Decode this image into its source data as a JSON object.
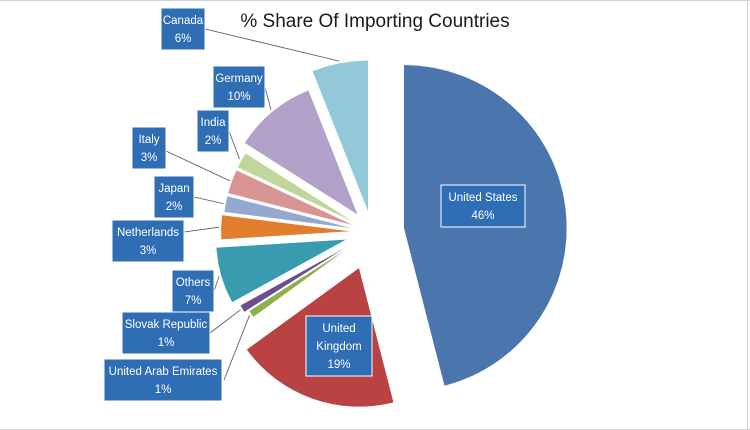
{
  "chart_data": {
    "type": "pie",
    "title": "% Share Of Importing Countries",
    "slices": [
      {
        "label": "United States",
        "value": 46,
        "value_label": "46%",
        "color": "#4a76ad",
        "label_inside": true
      },
      {
        "label": "United Kingdom",
        "value": 19,
        "value_label": "19%",
        "color": "#b94342",
        "label_inside": true
      },
      {
        "label": "United Arab Emirates",
        "value": 1,
        "value_label": "1%",
        "color": "#8cb04a",
        "label_inside": false
      },
      {
        "label": "Slovak Republic",
        "value": 1,
        "value_label": "1%",
        "color": "#6d4f8e",
        "label_inside": false
      },
      {
        "label": "Others",
        "value": 7,
        "value_label": "7%",
        "color": "#3a9bb0",
        "label_inside": false
      },
      {
        "label": "Netherlands",
        "value": 3,
        "value_label": "3%",
        "color": "#e07e2e",
        "label_inside": false
      },
      {
        "label": "Japan",
        "value": 2,
        "value_label": "2%",
        "color": "#93a9d0",
        "label_inside": false
      },
      {
        "label": "Italy",
        "value": 3,
        "value_label": "3%",
        "color": "#d99594",
        "label_inside": false
      },
      {
        "label": "India",
        "value": 2,
        "value_label": "2%",
        "color": "#c1d69b",
        "label_inside": false
      },
      {
        "label": "Germany",
        "value": 10,
        "value_label": "10%",
        "color": "#b1a0c7",
        "label_inside": false
      },
      {
        "label": "Canada",
        "value": 6,
        "value_label": "6%",
        "color": "#92c8d8",
        "label_inside": false
      }
    ],
    "label_box_color": "#2f6db5",
    "leader_line_color": "#555555"
  }
}
